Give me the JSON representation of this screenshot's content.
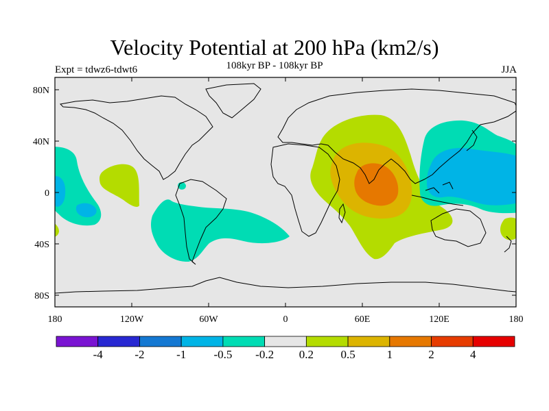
{
  "title": "Velocity Potential at 200 hPa (km2/s)",
  "subtitle": "108kyr BP - 108kyr BP",
  "left_label": "Expt = tdwz6-tdwt6",
  "right_label": "JJA",
  "lat_ticks": [
    "80N",
    "40N",
    "0",
    "40S",
    "80S"
  ],
  "lon_ticks": [
    "180",
    "120W",
    "60W",
    "0",
    "60E",
    "120E",
    "180"
  ],
  "colorbar": {
    "labels": [
      "-4",
      "-2",
      "-1",
      "-0.5",
      "-0.2",
      "0.2",
      "0.5",
      "1",
      "2",
      "4"
    ],
    "colors": [
      "#7a14d2",
      "#2828d2",
      "#1478d2",
      "#00b4e6",
      "#00dcb4",
      "#e6e6e6",
      "#b4dc00",
      "#dcb400",
      "#e67800",
      "#e63c00",
      "#e60000"
    ]
  },
  "colors": {
    "background": "#e6e6e6",
    "neg_weak": "#00dcb4",
    "neg_mid": "#00b4e6",
    "pos_weak": "#b4dc00",
    "pos_mid": "#dcb400",
    "pos_strong": "#e67800"
  }
}
